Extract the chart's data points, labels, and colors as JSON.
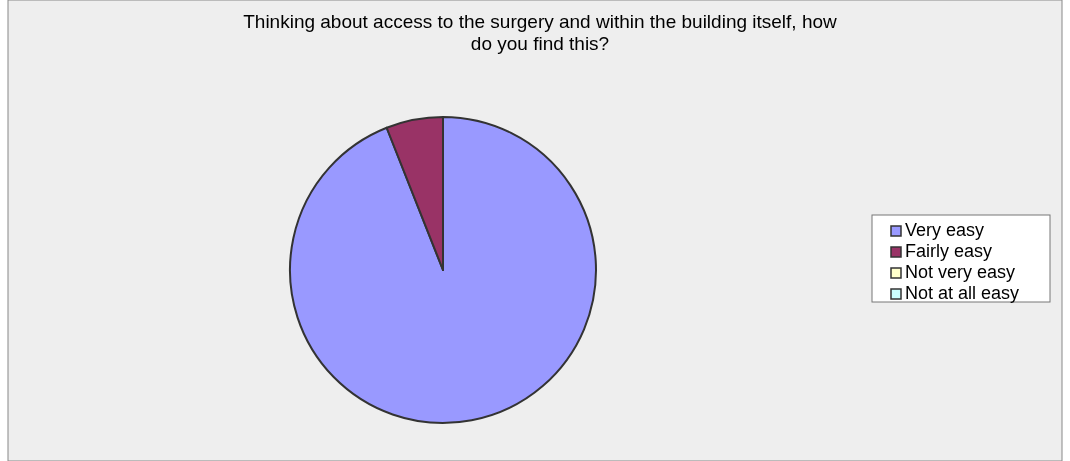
{
  "chart_data": {
    "type": "pie",
    "title": "Thinking about access to the surgery and within the building itself, how do you find this?",
    "categories": [
      "Very easy",
      "Fairly easy",
      "Not very easy",
      "Not at all easy"
    ],
    "values": [
      94,
      6,
      0,
      0
    ],
    "colors": [
      "#9999ff",
      "#993366",
      "#ffffcc",
      "#ccffff"
    ],
    "legend": "right"
  }
}
